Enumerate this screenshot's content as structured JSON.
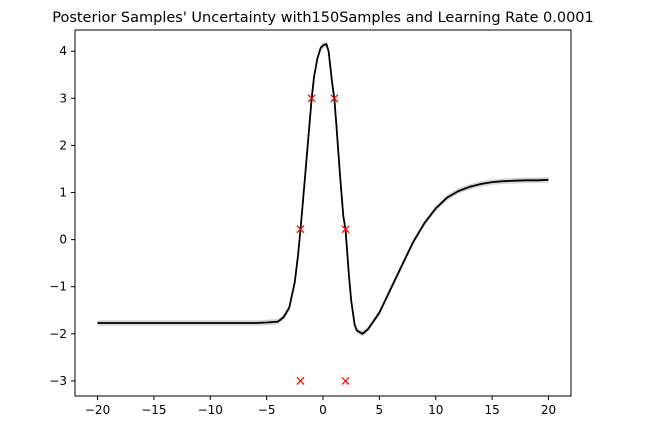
{
  "chart_data": {
    "type": "line",
    "title": "Posterior Samples' Uncertainty with150Samples and Learning Rate 0.0001",
    "xlabel": "",
    "ylabel": "",
    "xlim": [
      -22,
      22
    ],
    "ylim": [
      -3.32,
      4.45
    ],
    "grid": false,
    "xticks": [
      -20,
      -15,
      -10,
      -5,
      0,
      5,
      10,
      15,
      20
    ],
    "yticks": [
      -3,
      -2,
      -1,
      0,
      1,
      2,
      3,
      4
    ],
    "series": [
      {
        "kind": "mean-line",
        "color": "#000000",
        "x": [
          -20,
          -15,
          -10,
          -6,
          -5,
          -4,
          -3.5,
          -3,
          -2.5,
          -2.2,
          -2,
          -1.8,
          -1.5,
          -1.2,
          -1,
          -0.8,
          -0.5,
          -0.2,
          0,
          0.3,
          0.5,
          0.8,
          1,
          1.2,
          1.5,
          1.8,
          2,
          2.3,
          2.5,
          2.8,
          3,
          3.5,
          4,
          5,
          6,
          7,
          8,
          9,
          10,
          11,
          12,
          13,
          14,
          15,
          16,
          17,
          18,
          19,
          20
        ],
        "y": [
          -1.77,
          -1.77,
          -1.77,
          -1.77,
          -1.76,
          -1.74,
          -1.65,
          -1.45,
          -0.9,
          -0.3,
          0.22,
          0.75,
          1.6,
          2.45,
          3.0,
          3.45,
          3.85,
          4.07,
          4.12,
          4.15,
          4.0,
          3.35,
          3.0,
          2.4,
          1.4,
          0.5,
          0.22,
          -0.75,
          -1.3,
          -1.8,
          -1.93,
          -2.0,
          -1.9,
          -1.55,
          -1.05,
          -0.55,
          -0.05,
          0.35,
          0.66,
          0.89,
          1.03,
          1.12,
          1.18,
          1.22,
          1.24,
          1.25,
          1.26,
          1.26,
          1.27
        ]
      },
      {
        "kind": "uncertainty-band",
        "color": "#cccccc",
        "halfwidth": 0.06
      }
    ],
    "points": {
      "marker": "x",
      "color": "#ff0000",
      "x": [
        -2.0,
        -1.0,
        1.0,
        2.0,
        -2.0,
        2.0
      ],
      "y": [
        -3.0,
        3.0,
        3.0,
        -3.0,
        0.22,
        0.22
      ]
    }
  }
}
